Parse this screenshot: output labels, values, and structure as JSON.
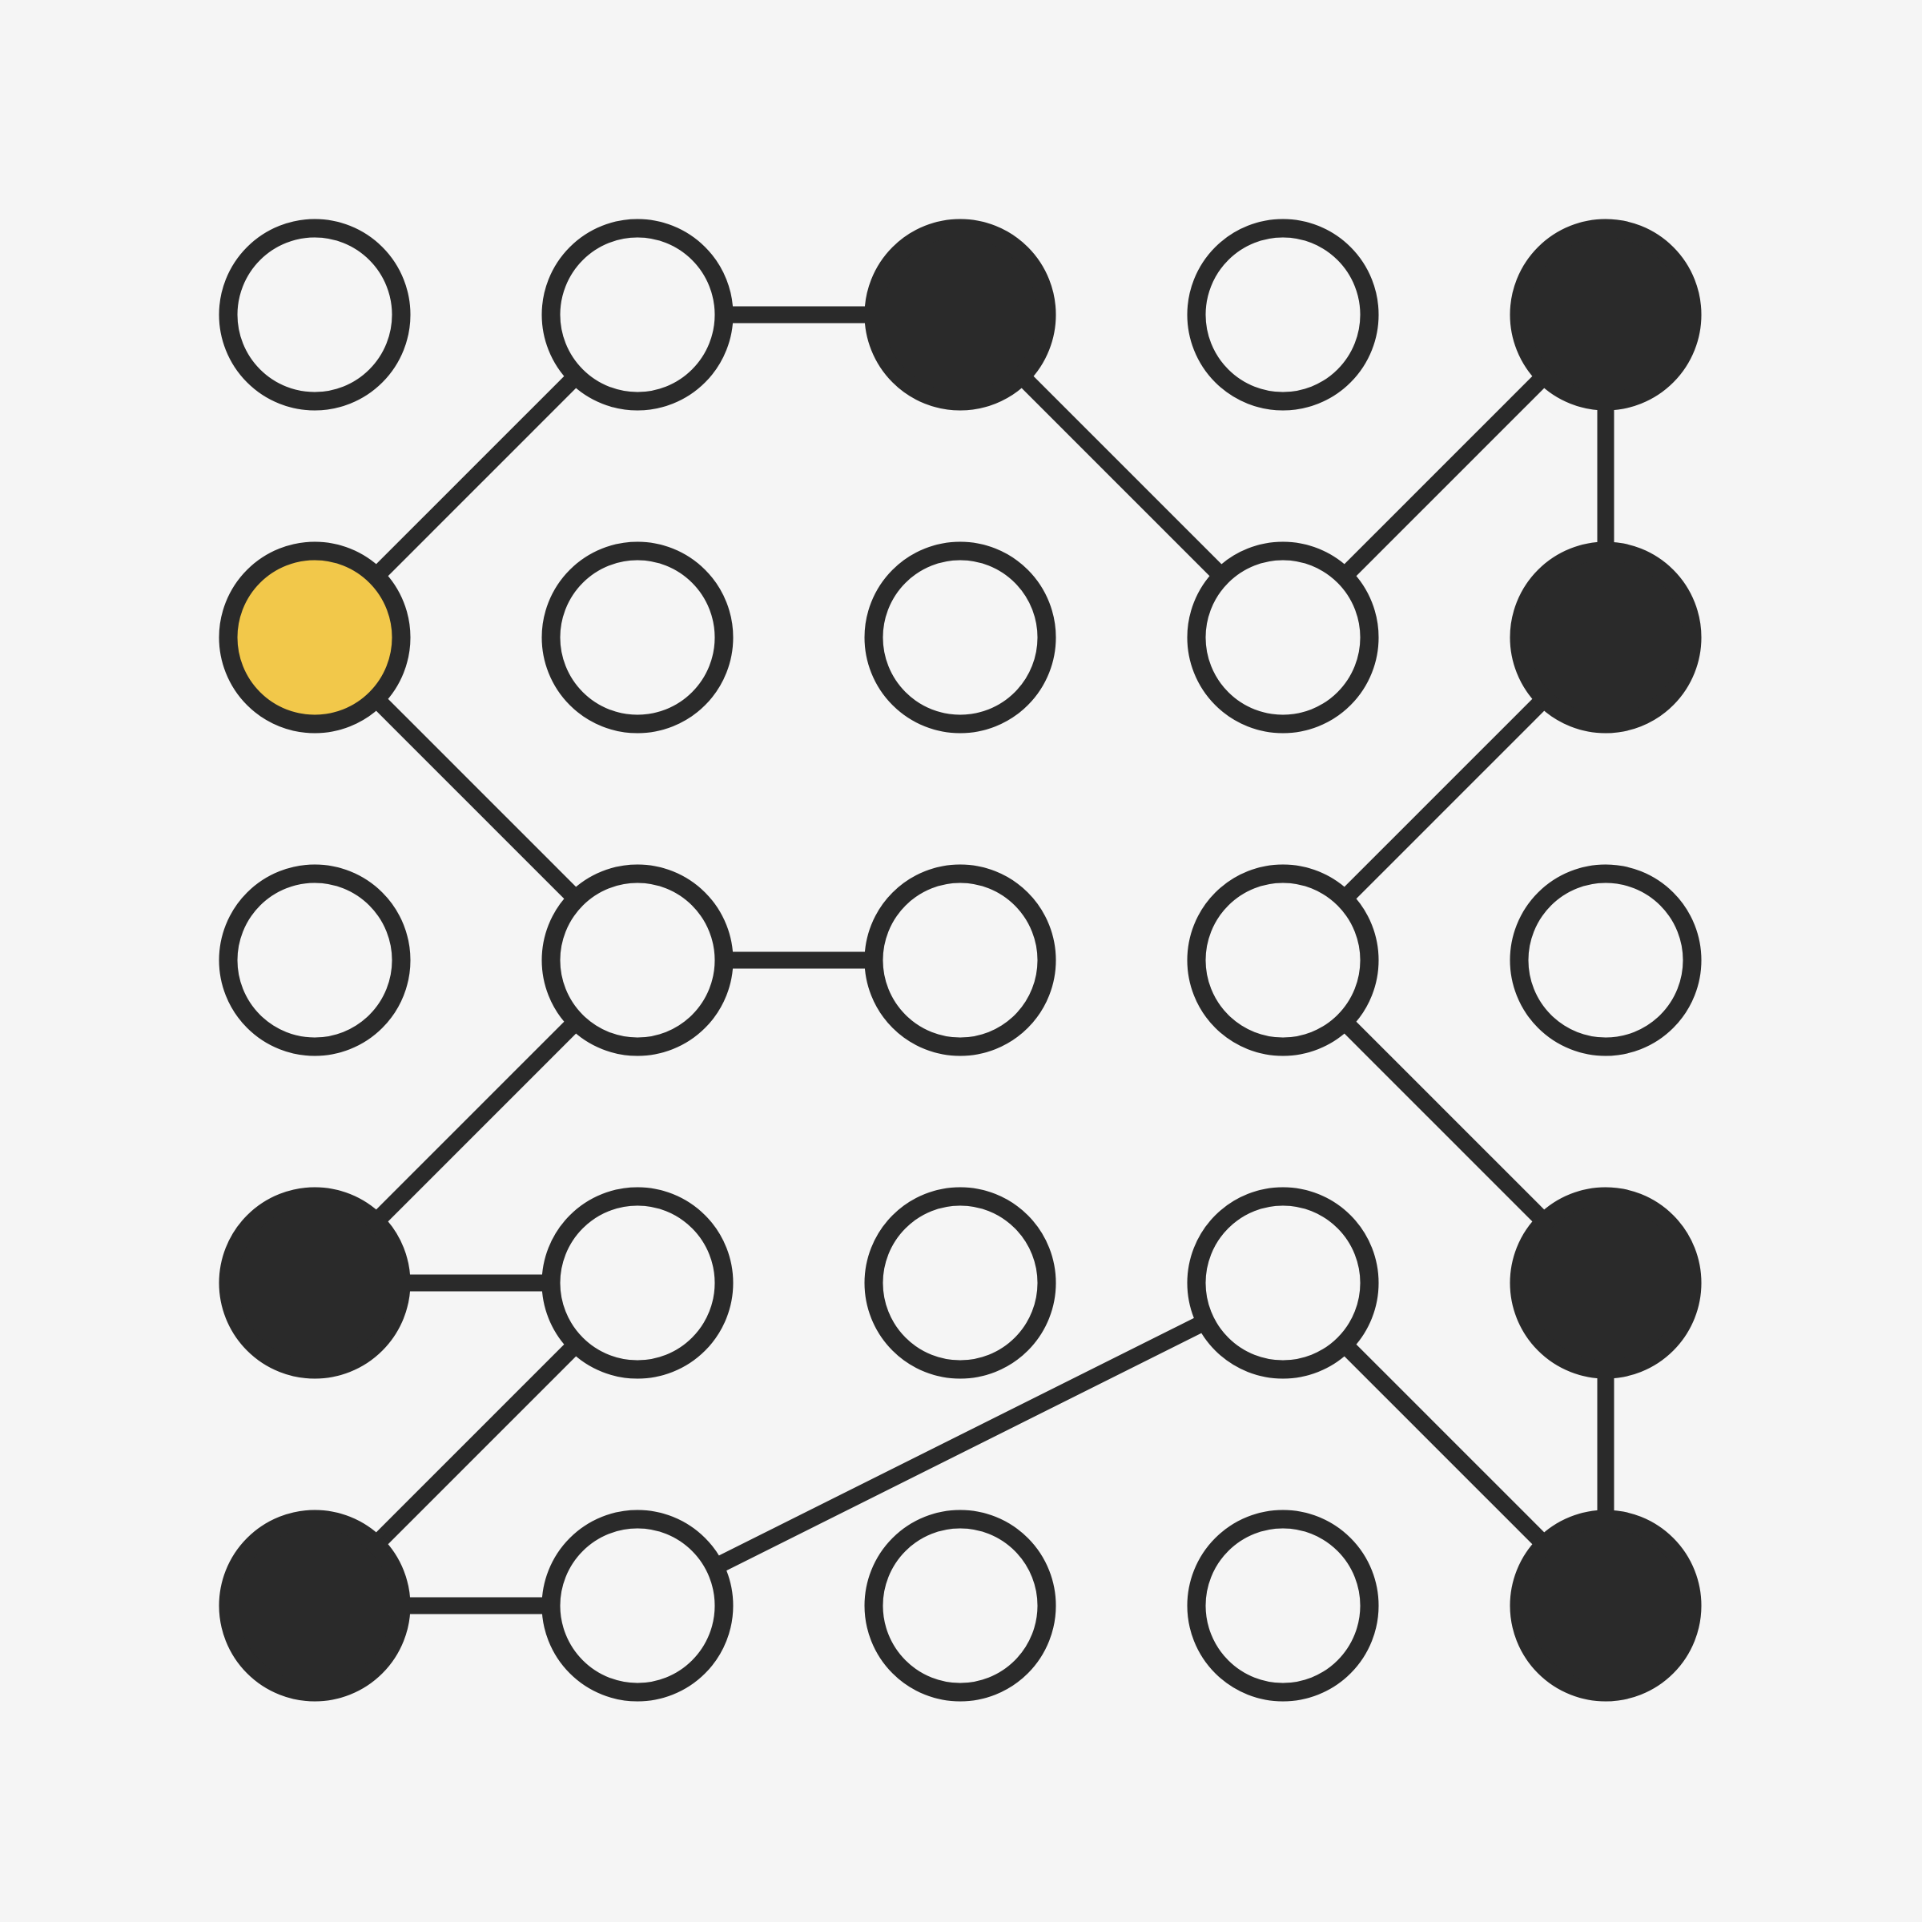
{
  "colors": {
    "background": "#f5f5f5",
    "ink": "#2a2a2a",
    "empty_fill": "#f5f5f5",
    "filled_fill": "#2a2a2a",
    "highlight_fill": "#f2c84a"
  },
  "grid": {
    "rows": 5,
    "cols": 5
  },
  "pegs": [
    {
      "row": 0,
      "col": 0,
      "state": "empty"
    },
    {
      "row": 0,
      "col": 1,
      "state": "empty"
    },
    {
      "row": 0,
      "col": 2,
      "state": "filled"
    },
    {
      "row": 0,
      "col": 3,
      "state": "empty"
    },
    {
      "row": 0,
      "col": 4,
      "state": "filled"
    },
    {
      "row": 1,
      "col": 0,
      "state": "highlight"
    },
    {
      "row": 1,
      "col": 1,
      "state": "empty"
    },
    {
      "row": 1,
      "col": 2,
      "state": "empty"
    },
    {
      "row": 1,
      "col": 3,
      "state": "empty"
    },
    {
      "row": 1,
      "col": 4,
      "state": "filled"
    },
    {
      "row": 2,
      "col": 0,
      "state": "empty"
    },
    {
      "row": 2,
      "col": 1,
      "state": "empty"
    },
    {
      "row": 2,
      "col": 2,
      "state": "empty"
    },
    {
      "row": 2,
      "col": 3,
      "state": "empty"
    },
    {
      "row": 2,
      "col": 4,
      "state": "empty"
    },
    {
      "row": 3,
      "col": 0,
      "state": "filled"
    },
    {
      "row": 3,
      "col": 1,
      "state": "empty"
    },
    {
      "row": 3,
      "col": 2,
      "state": "empty"
    },
    {
      "row": 3,
      "col": 3,
      "state": "empty"
    },
    {
      "row": 3,
      "col": 4,
      "state": "filled"
    },
    {
      "row": 4,
      "col": 0,
      "state": "filled"
    },
    {
      "row": 4,
      "col": 1,
      "state": "empty"
    },
    {
      "row": 4,
      "col": 2,
      "state": "empty"
    },
    {
      "row": 4,
      "col": 3,
      "state": "empty"
    },
    {
      "row": 4,
      "col": 4,
      "state": "filled"
    }
  ],
  "path": [
    [
      0,
      2
    ],
    [
      0,
      1
    ],
    [
      1,
      0
    ],
    [
      2,
      1
    ],
    [
      2,
      2
    ],
    [
      3,
      1
    ],
    [
      3,
      0
    ],
    [
      4,
      1
    ],
    [
      4,
      0
    ],
    [
      3,
      1
    ],
    [
      2,
      2
    ],
    [
      2,
      1
    ],
    [
      3,
      0
    ],
    [
      3,
      1
    ],
    [
      4,
      3
    ],
    [
      4,
      4
    ],
    [
      2,
      4
    ],
    [
      1,
      3
    ],
    [
      0,
      3
    ],
    [
      1,
      4
    ],
    [
      0,
      4
    ],
    [
      1,
      3
    ],
    [
      2,
      4
    ],
    [
      1,
      4
    ],
    [
      2,
      3
    ],
    [
      3,
      3
    ],
    [
      4,
      4
    ],
    [
      3,
      4
    ]
  ],
  "links": [
    {
      "from": [
        0,
        2
      ],
      "to": [
        1,
        3
      ]
    },
    {
      "from": [
        1,
        3
      ],
      "to": [
        0,
        4
      ]
    },
    {
      "from": [
        0,
        4
      ],
      "to": [
        1,
        4
      ]
    },
    {
      "from": [
        1,
        4
      ],
      "to": [
        2,
        3
      ]
    },
    {
      "from": [
        2,
        3
      ],
      "to": [
        3,
        4
      ]
    },
    {
      "from": [
        3,
        4
      ],
      "to": [
        4,
        4
      ]
    },
    {
      "from": [
        4,
        4
      ],
      "to": [
        3,
        3
      ]
    },
    {
      "from": [
        3,
        3
      ],
      "to": [
        4,
        1
      ]
    },
    {
      "from": [
        4,
        1
      ],
      "to": [
        4,
        0
      ]
    },
    {
      "from": [
        4,
        0
      ],
      "to": [
        3,
        1
      ]
    },
    {
      "from": [
        3,
        1
      ],
      "to": [
        3,
        0
      ]
    },
    {
      "from": [
        3,
        0
      ],
      "to": [
        2,
        1
      ]
    },
    {
      "from": [
        2,
        1
      ],
      "to": [
        2,
        2
      ]
    },
    {
      "from": [
        2,
        2
      ],
      "to": [
        2,
        1
      ]
    },
    {
      "from": [
        2,
        1
      ],
      "to": [
        1,
        0
      ]
    },
    {
      "from": [
        1,
        0
      ],
      "to": [
        0,
        1
      ]
    },
    {
      "from": [
        0,
        1
      ],
      "to": [
        0,
        2
      ]
    }
  ]
}
